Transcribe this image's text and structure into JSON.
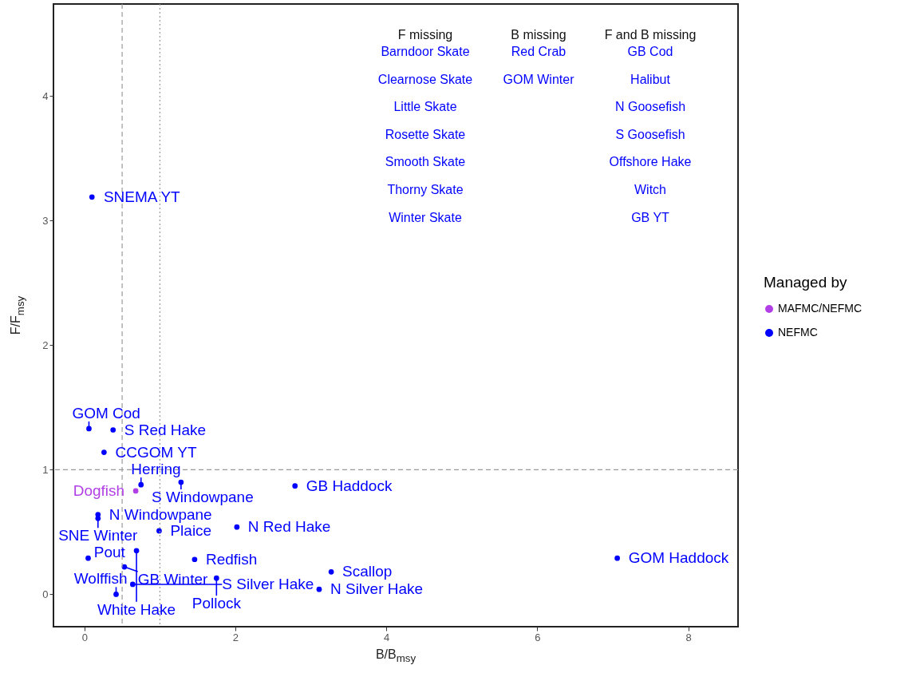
{
  "chart_data": {
    "type": "scatter",
    "xlabel": "B/B$_{msy}$",
    "ylabel": "F/F$_{msy}$",
    "legend_title": "Managed by",
    "legend": "right",
    "marker": "circle",
    "grid": false,
    "xlim": [
      -0.41,
      8.66
    ],
    "ylim": [
      -0.26,
      4.74
    ],
    "xticks": [
      0,
      2,
      4,
      6,
      8
    ],
    "yticks": [
      0,
      1,
      2,
      3,
      4
    ],
    "series": [
      {
        "name": "MAFMC/NEFMC",
        "color": "#b040e6",
        "x": [
          0.68
        ],
        "values": [
          0.83
        ],
        "value_labels": [
          "Dogfish"
        ]
      },
      {
        "name": "NEFMC",
        "color": "#0000ff",
        "x": [
          0.1,
          0.06,
          0.38,
          0.26,
          0.75,
          1.28,
          2.79,
          0.18,
          0.18,
          0.99,
          2.02,
          1.46,
          0.69,
          0.05,
          0.53,
          0.64,
          0.42,
          1.75,
          3.11,
          3.27,
          7.06
        ],
        "values": [
          3.19,
          1.33,
          1.32,
          1.14,
          0.88,
          0.9,
          0.87,
          0.64,
          0.61,
          0.51,
          0.54,
          0.28,
          0.35,
          0.29,
          0.22,
          0.08,
          0.0,
          0.13,
          0.04,
          0.18,
          0.29
        ],
        "value_labels": [
          "SNEMA YT",
          "GOM Cod",
          "S Red Hake",
          "CCGOM YT",
          "Herring",
          "S Windowpane",
          "GB Haddock",
          "N Windowpane",
          "SNE Winter",
          "Plaice",
          "N Red Hake",
          "Redfish",
          "White Hake",
          "Pout",
          "GB Winter",
          "S Silver Hake",
          "Wolffish",
          "Pollock",
          "N Silver Hake",
          "Scallop",
          "GOM Haddock"
        ]
      }
    ],
    "ref_lines": [
      {
        "axis": "x",
        "value": 0.5,
        "line_style": "dashed",
        "color": "#999999"
      },
      {
        "axis": "x",
        "value": 1,
        "line_style": "dotted",
        "color": "#999999"
      },
      {
        "axis": "y",
        "value": 1,
        "line_style": "dashed",
        "color": "#999999"
      }
    ],
    "annotations": [
      "F missing\nBarndoor Skate\nClearnose Skate\nLittle Skate\nRosette Skate\nSmooth Skate\nThorny Skate\nWinter Skate",
      "B missing\nRed Crab\nGOM Winter",
      "F and B missing\nGB Cod\nHalibut\nN Goosefish\nS Goosefish\nOffshore Hake\nWitch\nGB YT"
    ]
  }
}
